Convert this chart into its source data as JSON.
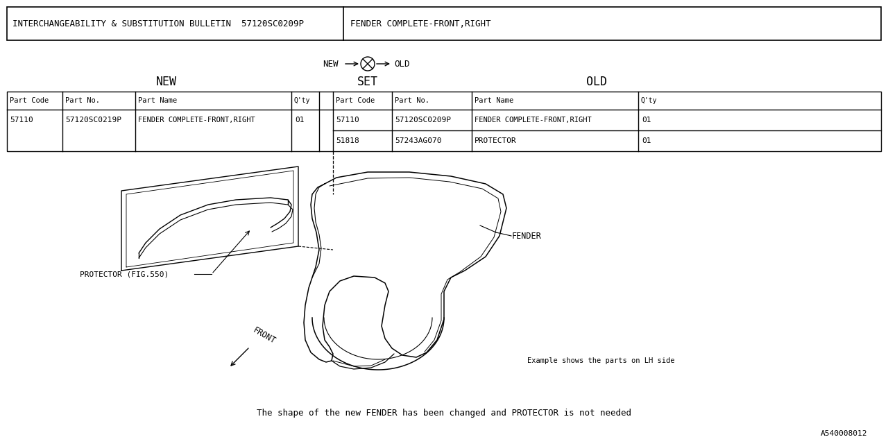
{
  "bg_color": "#ffffff",
  "title_row": {
    "col1": "INTERCHANGEABILITY & SUBSTITUTION BULLETIN  57120SC0209P",
    "col2": "FENDER COMPLETE-FRONT,RIGHT"
  },
  "new_rows": [
    [
      "57110",
      "57120SC0219P",
      "FENDER COMPLETE-FRONT,RIGHT",
      "01"
    ]
  ],
  "old_rows": [
    [
      "57110",
      "57120SC0209P",
      "FENDER COMPLETE-FRONT,RIGHT",
      "01"
    ],
    [
      "51818",
      "57243AG070",
      "PROTECTOR",
      "01"
    ]
  ],
  "label_protector": "PROTECTOR (FIG.550)",
  "label_fender": "FENDER",
  "label_front": "FRONT",
  "note_example": "Example shows the parts on LH side",
  "note_bottom": "The shape of the new FENDER has been changed and PROTECTOR is not needed",
  "doc_number": "A540008012"
}
